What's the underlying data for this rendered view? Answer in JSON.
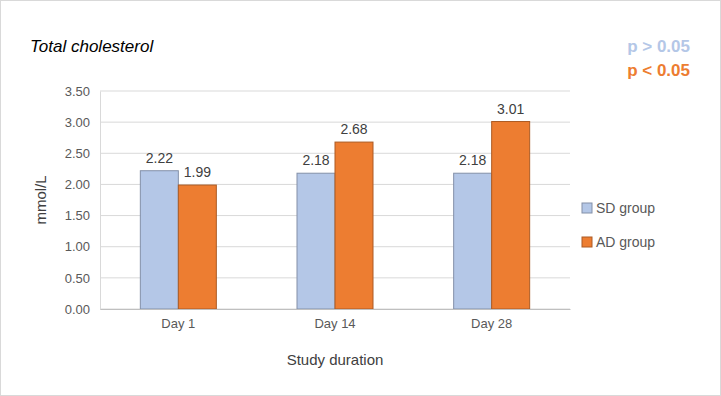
{
  "chart_data": {
    "type": "bar",
    "title": "Total cholesterol",
    "x_label": "Study duration",
    "y_label": "mmol/L",
    "categories": [
      "Day 1",
      "Day 14",
      "Day 28"
    ],
    "series": [
      {
        "name": "SD group",
        "color": "#b4c7e7",
        "values": [
          2.22,
          2.18,
          2.18
        ]
      },
      {
        "name": "AD group",
        "color": "#ed7d31",
        "values": [
          1.99,
          2.68,
          3.01
        ]
      }
    ],
    "ylim": [
      0,
      3.5
    ],
    "yticks": [
      {
        "value": 0,
        "label": "0.00"
      },
      {
        "value": 0.5,
        "label": "0.50"
      },
      {
        "value": 1,
        "label": "1.00"
      },
      {
        "value": 1.5,
        "label": "1.50"
      },
      {
        "value": 2,
        "label": "2.00"
      },
      {
        "value": 2.5,
        "label": "2.50"
      },
      {
        "value": 3,
        "label": "3.00"
      },
      {
        "value": 3.5,
        "label": "3.50"
      }
    ],
    "grid": true,
    "legend": "right",
    "data_labels": true,
    "annotations": [
      "p > 0.05",
      "p < 0.05"
    ]
  }
}
